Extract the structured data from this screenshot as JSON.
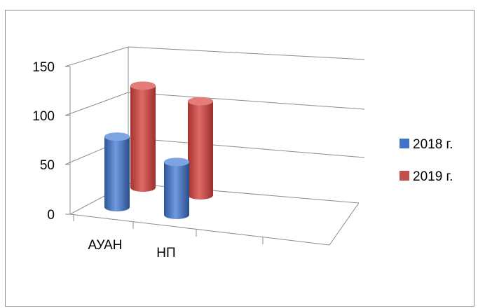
{
  "chart_data": {
    "type": "bar",
    "style": "3d-cylinder",
    "categories": [
      "АУАН",
      "НП"
    ],
    "series": [
      {
        "name": "2018 г.",
        "color": "#4472C4",
        "values": [
          72,
          54
        ]
      },
      {
        "name": "2019 г.",
        "color": "#C0504D",
        "values": [
          104,
          96
        ]
      }
    ],
    "ylim": [
      0,
      150
    ],
    "yticks": [
      "0",
      "50",
      "100",
      "150"
    ],
    "grid": true,
    "legend_position": "right"
  }
}
